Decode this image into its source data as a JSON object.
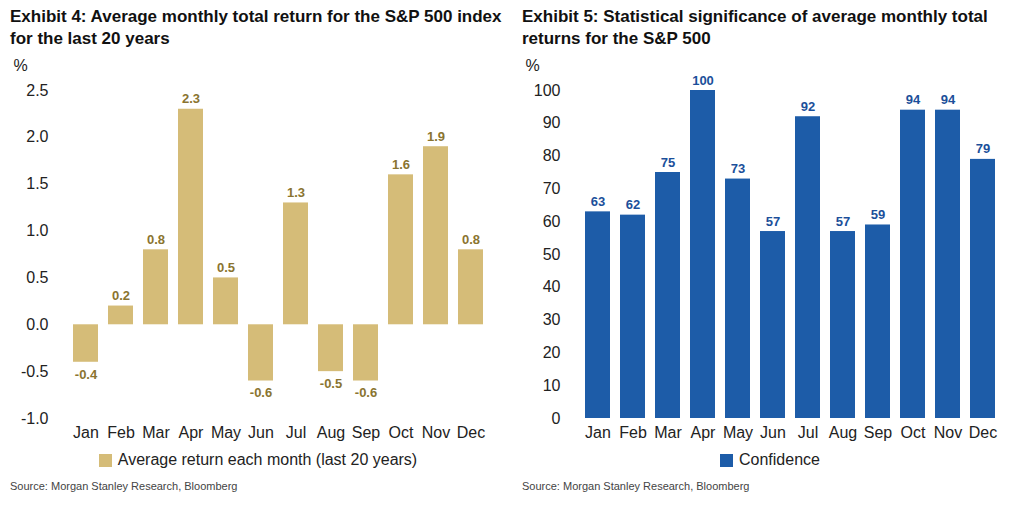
{
  "chart_data": [
    {
      "type": "bar",
      "title": "Exhibit 4:  Average monthly total return for the S&P 500 index for the last 20 years",
      "ylabel": "%",
      "categories": [
        "Jan",
        "Feb",
        "Mar",
        "Apr",
        "May",
        "Jun",
        "Jul",
        "Aug",
        "Sep",
        "Oct",
        "Nov",
        "Dec"
      ],
      "series": [
        {
          "name": "Average return each month (last 20 years)",
          "color": "#d5bc78",
          "values": [
            -0.4,
            0.2,
            0.8,
            2.3,
            0.5,
            -0.6,
            1.3,
            -0.5,
            -0.6,
            1.6,
            1.9,
            0.8
          ]
        }
      ],
      "ylim": [
        -1.0,
        2.5
      ],
      "yticks": [
        {
          "value": -1.0,
          "label": "-1.0"
        },
        {
          "value": -0.5,
          "label": "-0.5"
        },
        {
          "value": 0,
          "label": "0.0"
        },
        {
          "value": 0.5,
          "label": "0.5"
        },
        {
          "value": 1.0,
          "label": "1.0"
        },
        {
          "value": 1.5,
          "label": "1.5"
        },
        {
          "value": 2.0,
          "label": "2.0"
        },
        {
          "value": 2.5,
          "label": "2.5"
        }
      ],
      "grid": false,
      "data_labels": true,
      "legend": "bottom",
      "source": "Source: Morgan Stanley Research, Bloomberg"
    },
    {
      "type": "bar",
      "title": "Exhibit 5:  Statistical significance of average monthly total returns for the S&P 500",
      "ylabel": "%",
      "categories": [
        "Jan",
        "Feb",
        "Mar",
        "Apr",
        "May",
        "Jun",
        "Jul",
        "Aug",
        "Sep",
        "Oct",
        "Nov",
        "Dec"
      ],
      "series": [
        {
          "name": "Confidence",
          "color": "#1d5ca8",
          "values": [
            63,
            62,
            75,
            100,
            73,
            57,
            92,
            57,
            59,
            94,
            94,
            79
          ]
        }
      ],
      "ylim": [
        0,
        100
      ],
      "yticks": [
        0,
        10,
        20,
        30,
        40,
        50,
        60,
        70,
        80,
        90,
        100
      ],
      "grid": false,
      "data_labels": true,
      "legend": "bottom",
      "source": "Source: Morgan Stanley Research, Bloomberg"
    }
  ]
}
